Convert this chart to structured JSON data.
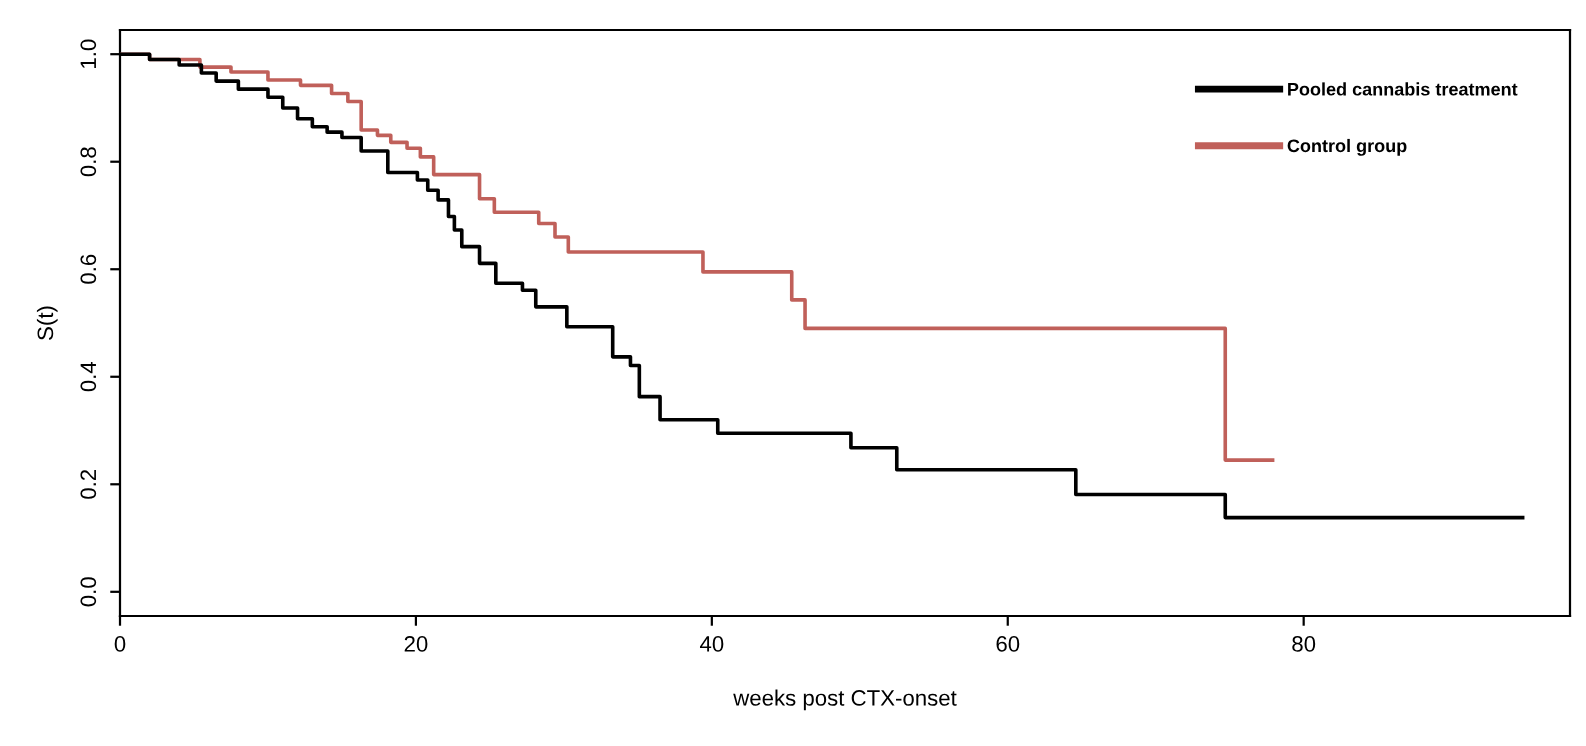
{
  "chart_data": {
    "type": "step",
    "xlabel": "weeks post CTX-onset",
    "ylabel": "S(t)",
    "xlim": [
      0,
      98
    ],
    "ylim": [
      -0.045,
      1.045
    ],
    "xticks": [
      0,
      20,
      40,
      60,
      80
    ],
    "yticks": [
      {
        "value": 0,
        "label": "0.0"
      },
      {
        "value": 0.2,
        "label": "0.2"
      },
      {
        "value": 0.4,
        "label": "0.4"
      },
      {
        "value": 0.6,
        "label": "0.6"
      },
      {
        "value": 0.8,
        "label": "0.8"
      },
      {
        "value": 1,
        "label": "1.0"
      }
    ],
    "grid": false,
    "legend": "top right",
    "marker": "none",
    "line_style": "solid",
    "series": [
      {
        "name": "Pooled cannabis treatment",
        "color": "#000000",
        "x": [
          0,
          2,
          4,
          5.5,
          6.5,
          8,
          10,
          11,
          12,
          13,
          14,
          15,
          16.3,
          18.1,
          20.1,
          20.8,
          21.5,
          22.2,
          22.6,
          23.1,
          24.3,
          25.4,
          27.2,
          28.1,
          30.2,
          33.3,
          34.5,
          35.1,
          36.5,
          40.4,
          49.4,
          52.5,
          64.6,
          74.7,
          94.8
        ],
        "values": [
          1.0,
          0.99,
          0.98,
          0.965,
          0.95,
          0.935,
          0.92,
          0.9,
          0.88,
          0.865,
          0.855,
          0.845,
          0.82,
          0.78,
          0.766,
          0.747,
          0.729,
          0.698,
          0.673,
          0.642,
          0.611,
          0.574,
          0.561,
          0.53,
          0.493,
          0.437,
          0.421,
          0.363,
          0.32,
          0.295,
          0.268,
          0.227,
          0.181,
          0.138,
          0.138
        ]
      },
      {
        "name": "Control group",
        "color": "#c0605a",
        "x": [
          0,
          2,
          5.4,
          7.5,
          10,
          12.2,
          14.3,
          15.4,
          16.3,
          17.4,
          18.3,
          19.4,
          20.3,
          21.2,
          24.3,
          25.3,
          28.3,
          29.4,
          30.3,
          39.4,
          45.4,
          46.3,
          74.7,
          77.9
        ],
        "values": [
          1.0,
          0.99,
          0.976,
          0.967,
          0.952,
          0.942,
          0.927,
          0.912,
          0.859,
          0.849,
          0.836,
          0.825,
          0.809,
          0.776,
          0.731,
          0.706,
          0.685,
          0.66,
          0.632,
          0.595,
          0.543,
          0.49,
          0.245,
          0.245
        ]
      }
    ]
  }
}
